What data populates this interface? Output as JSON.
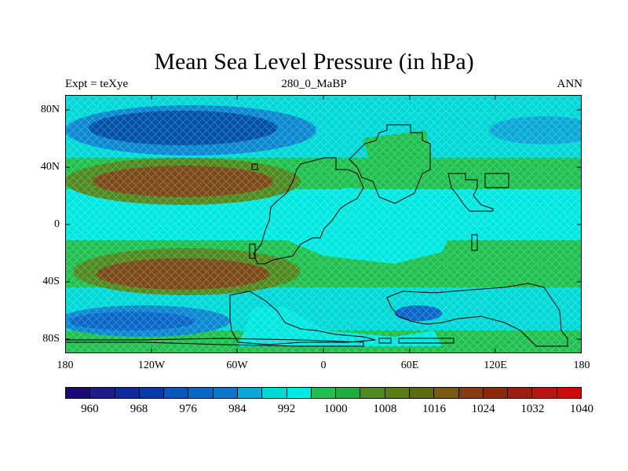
{
  "title": "Mean Sea Level Pressure (in hPa)",
  "subtitle_left": "Expt = teXye",
  "subtitle_center": "280_0_MaBP",
  "subtitle_right": "ANN",
  "map": {
    "y_ticks": [
      "80N",
      "40N",
      "0",
      "40S",
      "80S"
    ],
    "x_ticks": [
      "180",
      "120W",
      "60W",
      "0",
      "60E",
      "120E",
      "180"
    ],
    "colors": {
      "light_blue": "#00e8e0",
      "cyan": "#00d8d8",
      "green": "#20c050",
      "olive": "#4e8a20",
      "brown": "#7a4a18",
      "blue": "#1070c0",
      "dark_blue": "#0050a8",
      "coast": "#000000"
    }
  },
  "colorbar": {
    "colors": [
      "#1a0a78",
      "#1c1c8c",
      "#1028a0",
      "#0838b0",
      "#0a56c0",
      "#0a66c8",
      "#0a78cc",
      "#0aa8d8",
      "#00d8d8",
      "#00e8e8",
      "#20c050",
      "#1ab040",
      "#4e8a20",
      "#5c7c18",
      "#5e6a10",
      "#7a5a10",
      "#883a10",
      "#8e2808",
      "#a01c0c",
      "#b81410",
      "#cc0a0a"
    ],
    "labels": [
      "960",
      "968",
      "976",
      "984",
      "992",
      "1000",
      "1008",
      "1016",
      "1024",
      "1032",
      "1040"
    ]
  }
}
